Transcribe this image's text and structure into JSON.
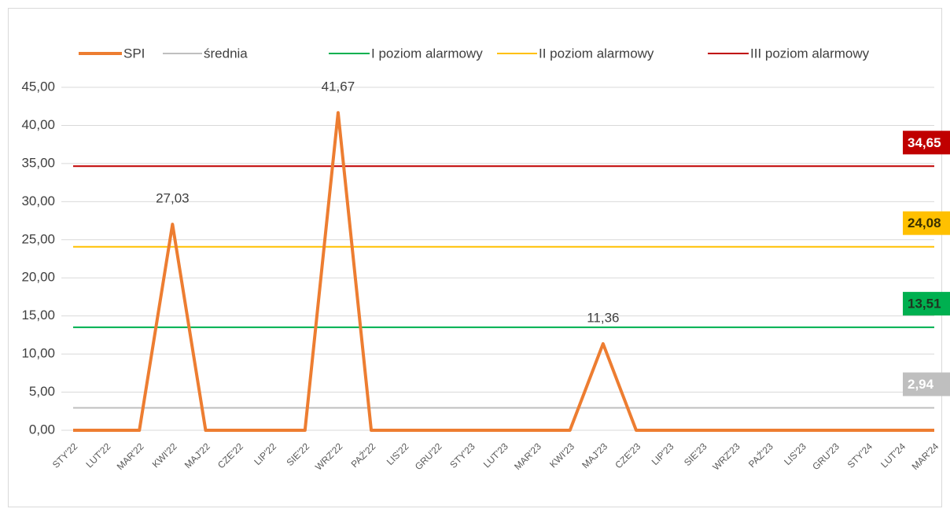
{
  "chart_data": {
    "type": "line",
    "categories": [
      "STY'22",
      "LUT'22",
      "MAR'22",
      "KWI'22",
      "MAJ'22",
      "CZE'22",
      "LIP'22",
      "SIE'22",
      "WRZ'22",
      "PAŹ'22",
      "LIS'22",
      "GRU'22",
      "STY'23",
      "LUT'23",
      "MAR'23",
      "KWI'23",
      "MAJ'23",
      "CZE'23",
      "LIP'23",
      "SIE'23",
      "WRZ'23",
      "PAŹ'23",
      "LIS'23",
      "GRU'23",
      "STY'24",
      "LUT'24",
      "MAR'24"
    ],
    "series": [
      {
        "name": "SPI",
        "color": "#ed7d31",
        "width": 4,
        "values": [
          0,
          0,
          0,
          27.03,
          0,
          0,
          0,
          0,
          41.67,
          0,
          0,
          0,
          0,
          0,
          0,
          0,
          11.36,
          0,
          0,
          0,
          0,
          0,
          0,
          0,
          0,
          0,
          0
        ],
        "value_labels": [
          null,
          null,
          null,
          "27,03",
          null,
          null,
          null,
          null,
          "41,67",
          null,
          null,
          null,
          null,
          null,
          null,
          null,
          "11,36",
          null,
          null,
          null,
          null,
          null,
          null,
          null,
          null,
          null,
          null
        ]
      },
      {
        "name": "średnia",
        "color": "#bfbfbf",
        "width": 2,
        "label_text_color": "#ffffff",
        "values": [
          2.94,
          2.94,
          2.94,
          2.94,
          2.94,
          2.94,
          2.94,
          2.94,
          2.94,
          2.94,
          2.94,
          2.94,
          2.94,
          2.94,
          2.94,
          2.94,
          2.94,
          2.94,
          2.94,
          2.94,
          2.94,
          2.94,
          2.94,
          2.94,
          2.94,
          2.94,
          2.94
        ],
        "value_labels": [
          null,
          null,
          null,
          null,
          null,
          null,
          null,
          null,
          null,
          null,
          null,
          null,
          null,
          null,
          null,
          null,
          null,
          null,
          null,
          null,
          null,
          null,
          null,
          null,
          null,
          null,
          "2,94"
        ]
      },
      {
        "name": "I poziom alarmowy",
        "color": "#00b050",
        "width": 2,
        "label_text_color": "#203520",
        "values": [
          13.51,
          13.51,
          13.51,
          13.51,
          13.51,
          13.51,
          13.51,
          13.51,
          13.51,
          13.51,
          13.51,
          13.51,
          13.51,
          13.51,
          13.51,
          13.51,
          13.51,
          13.51,
          13.51,
          13.51,
          13.51,
          13.51,
          13.51,
          13.51,
          13.51,
          13.51,
          13.51
        ],
        "value_labels": [
          null,
          null,
          null,
          null,
          null,
          null,
          null,
          null,
          null,
          null,
          null,
          null,
          null,
          null,
          null,
          null,
          null,
          null,
          null,
          null,
          null,
          null,
          null,
          null,
          null,
          null,
          "13,51"
        ]
      },
      {
        "name": "II poziom alarmowy",
        "color": "#ffc000",
        "width": 2,
        "label_text_color": "#3a3000",
        "values": [
          24.08,
          24.08,
          24.08,
          24.08,
          24.08,
          24.08,
          24.08,
          24.08,
          24.08,
          24.08,
          24.08,
          24.08,
          24.08,
          24.08,
          24.08,
          24.08,
          24.08,
          24.08,
          24.08,
          24.08,
          24.08,
          24.08,
          24.08,
          24.08,
          24.08,
          24.08,
          24.08
        ],
        "value_labels": [
          null,
          null,
          null,
          null,
          null,
          null,
          null,
          null,
          null,
          null,
          null,
          null,
          null,
          null,
          null,
          null,
          null,
          null,
          null,
          null,
          null,
          null,
          null,
          null,
          null,
          null,
          "24,08"
        ]
      },
      {
        "name": "III poziom alarmowy",
        "color": "#c00000",
        "width": 2,
        "label_text_color": "#ffffff",
        "values": [
          34.65,
          34.65,
          34.65,
          34.65,
          34.65,
          34.65,
          34.65,
          34.65,
          34.65,
          34.65,
          34.65,
          34.65,
          34.65,
          34.65,
          34.65,
          34.65,
          34.65,
          34.65,
          34.65,
          34.65,
          34.65,
          34.65,
          34.65,
          34.65,
          34.65,
          34.65,
          34.65
        ],
        "value_labels": [
          null,
          null,
          null,
          null,
          null,
          null,
          null,
          null,
          null,
          null,
          null,
          null,
          null,
          null,
          null,
          null,
          null,
          null,
          null,
          null,
          null,
          null,
          null,
          null,
          null,
          null,
          "34,65"
        ]
      }
    ],
    "ylim": [
      0,
      45
    ],
    "yticks": [
      {
        "value": 0,
        "label": "0,00"
      },
      {
        "value": 5,
        "label": "5,00"
      },
      {
        "value": 10,
        "label": "10,00"
      },
      {
        "value": 15,
        "label": "15,00"
      },
      {
        "value": 20,
        "label": "20,00"
      },
      {
        "value": 25,
        "label": "25,00"
      },
      {
        "value": 30,
        "label": "30,00"
      },
      {
        "value": 35,
        "label": "35,00"
      },
      {
        "value": 40,
        "label": "40,00"
      },
      {
        "value": 45,
        "label": "45,00"
      }
    ],
    "grid": true,
    "legend": "top"
  }
}
